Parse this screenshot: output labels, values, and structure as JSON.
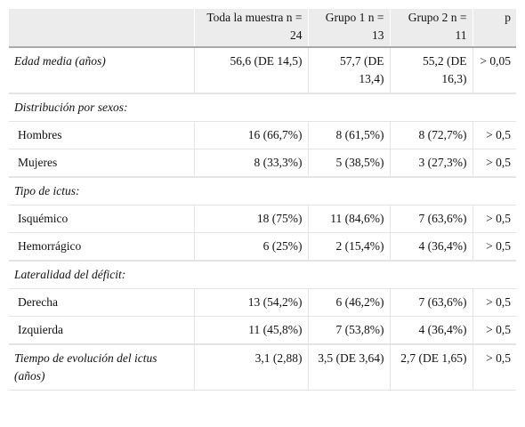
{
  "table": {
    "header": [
      "",
      "Toda la muestra n = 24",
      "Grupo 1 n = 13",
      "Grupo 2 n = 11",
      "p"
    ],
    "groups": [
      {
        "rows": [
          [
            "Edad media (años)",
            "56,6 (DE 14,5)",
            "57,7 (DE 13,4)",
            "55,2 (DE 16,3)",
            "> 0,05"
          ]
        ]
      },
      {
        "title": "Distribución por sexos:",
        "rows": [
          [
            "Hombres",
            "16 (66,7%)",
            "8 (61,5%)",
            "8 (72,7%)",
            "> 0,5"
          ],
          [
            "Mujeres",
            "8 (33,3%)",
            "5 (38,5%)",
            "3 (27,3%)",
            "> 0,5"
          ]
        ]
      },
      {
        "title": "Tipo de ictus:",
        "rows": [
          [
            "Isquémico",
            "18 (75%)",
            "11 (84,6%)",
            "7 (63,6%)",
            "> 0,5"
          ],
          [
            "Hemorrágico",
            "6 (25%)",
            "2 (15,4%)",
            "4 (36,4%)",
            "> 0,5"
          ]
        ]
      },
      {
        "title": "Lateralidad del déficit:",
        "rows": [
          [
            "Derecha",
            "13 (54,2%)",
            "6 (46,2%)",
            "7 (63,6%)",
            "> 0,5"
          ],
          [
            "Izquierda",
            "11 (45,8%)",
            "7 (53,8%)",
            "4 (36,4%)",
            "> 0,5"
          ]
        ]
      },
      {
        "rows": [
          [
            "Tiempo de evolución del ictus (años)",
            "3,1 (2,88)",
            "3,5 (DE 3,64)",
            "2,7 (DE 1,65)",
            "> 0,5"
          ]
        ]
      }
    ]
  }
}
